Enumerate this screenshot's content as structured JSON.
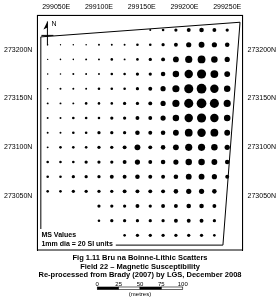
{
  "chart_data": {
    "type": "bubble",
    "x": [
      299040,
      299055,
      299070,
      299085,
      299100,
      299115,
      299130,
      299145,
      299160,
      299175,
      299190,
      299205,
      299220,
      299235,
      299250
    ],
    "y": [
      273220,
      273205,
      273190,
      273175,
      273160,
      273145,
      273130,
      273115,
      273100,
      273085,
      273070,
      273055,
      273040,
      273025,
      273010
    ],
    "values": [
      [
        null,
        null,
        null,
        null,
        null,
        null,
        null,
        null,
        15,
        20,
        25,
        30,
        35,
        30,
        25
      ],
      [
        10,
        10,
        12,
        12,
        15,
        15,
        15,
        20,
        20,
        25,
        30,
        40,
        45,
        40,
        35
      ],
      [
        10,
        12,
        12,
        15,
        15,
        20,
        15,
        20,
        25,
        30,
        45,
        55,
        60,
        50,
        40
      ],
      [
        12,
        12,
        15,
        15,
        15,
        20,
        20,
        25,
        25,
        35,
        50,
        65,
        70,
        60,
        45
      ],
      [
        12,
        15,
        15,
        15,
        20,
        20,
        20,
        25,
        30,
        40,
        55,
        70,
        75,
        65,
        50
      ],
      [
        15,
        15,
        15,
        20,
        20,
        20,
        25,
        25,
        30,
        40,
        55,
        70,
        75,
        70,
        55
      ],
      [
        15,
        15,
        20,
        20,
        20,
        25,
        25,
        30,
        30,
        40,
        50,
        65,
        70,
        65,
        50
      ],
      [
        15,
        15,
        20,
        20,
        25,
        25,
        25,
        35,
        30,
        35,
        45,
        60,
        65,
        60,
        45
      ],
      [
        15,
        20,
        20,
        20,
        25,
        25,
        30,
        45,
        30,
        35,
        45,
        55,
        55,
        50,
        40
      ],
      [
        20,
        20,
        20,
        25,
        25,
        25,
        30,
        40,
        30,
        35,
        40,
        50,
        50,
        45,
        35
      ],
      [
        20,
        20,
        25,
        25,
        25,
        30,
        30,
        35,
        30,
        30,
        35,
        45,
        45,
        40,
        30
      ],
      [
        20,
        20,
        25,
        25,
        25,
        25,
        30,
        30,
        30,
        30,
        35,
        40,
        40,
        35,
        null
      ],
      [
        null,
        null,
        null,
        null,
        25,
        25,
        25,
        30,
        25,
        30,
        30,
        35,
        35,
        30,
        null
      ],
      [
        null,
        null,
        null,
        null,
        20,
        25,
        25,
        25,
        25,
        25,
        30,
        30,
        30,
        25,
        null
      ],
      [
        null,
        null,
        null,
        null,
        20,
        20,
        20,
        25,
        25,
        25,
        25,
        25,
        25,
        20,
        null
      ]
    ],
    "color": "#000000",
    "boundary": {
      "x": [
        299032,
        299265,
        299245,
        299032,
        299032
      ],
      "y": [
        273213,
        273228,
        273000,
        273000,
        273213
      ]
    },
    "xlim": [
      299028,
      299268
    ],
    "ylim": [
      272995,
      273235
    ],
    "xticks": [
      {
        "value": 299050,
        "label": "299050E"
      },
      {
        "value": 299100,
        "label": "299100E"
      },
      {
        "value": 299150,
        "label": "299150E"
      },
      {
        "value": 299200,
        "label": "299200E"
      },
      {
        "value": 299250,
        "label": "299250E"
      }
    ],
    "yticks": [
      {
        "value": 273050,
        "label": "273050N"
      },
      {
        "value": 273100,
        "label": "273100N"
      },
      {
        "value": 273150,
        "label": "273150N"
      },
      {
        "value": 273200,
        "label": "273200N"
      }
    ],
    "grid": false,
    "north_label": "N",
    "size_legend": {
      "title": "MS Values",
      "text": "1mm dia = 20 SI units",
      "si_per_mm": 20
    },
    "caption": [
      "Fig 1.11 Bru na Boinne-Lithic Scatters",
      "Field 22 – Magnetic Susceptibility",
      "Re-processed from Brady (2007) by LGS, December 2008"
    ],
    "scale_bar": {
      "ticks": [
        0,
        25,
        50,
        75,
        100
      ],
      "label": "(metres)"
    }
  }
}
